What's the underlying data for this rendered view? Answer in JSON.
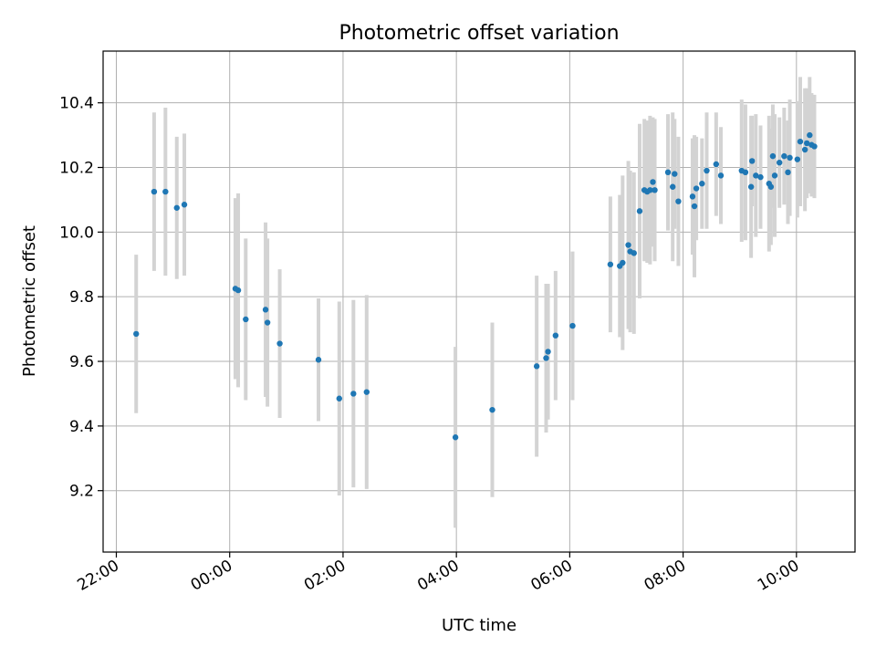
{
  "chart_data": {
    "type": "scatter",
    "title": "Photometric offset variation",
    "xlabel": "UTC time",
    "ylabel": "Photometric offset",
    "xlim": [
      "21:46",
      "11:02"
    ],
    "ylim": [
      9.01,
      10.56
    ],
    "x_ticks": [
      "22:00",
      "00:00",
      "02:00",
      "04:00",
      "06:00",
      "08:00",
      "10:00"
    ],
    "y_ticks": [
      9.2,
      9.4,
      9.6,
      9.8,
      10.0,
      10.2,
      10.4
    ],
    "y_tick_labels": [
      "9.2",
      "9.4",
      "9.6",
      "9.8",
      "10.0",
      "10.2",
      "10.4"
    ],
    "grid": true,
    "colors": {
      "point": "#1f77b4",
      "errorbar": "#d3d3d3",
      "grid": "#b0b0b0"
    },
    "series": [
      {
        "x": [
          "22:21",
          "22:40",
          "22:52",
          "23:04",
          "23:12",
          "00:06",
          "00:09",
          "00:17",
          "00:38",
          "00:40",
          "00:53",
          "01:34",
          "01:56",
          "02:11",
          "02:25",
          "03:59",
          "04:38",
          "05:25",
          "05:35",
          "05:37",
          "05:45",
          "06:03",
          "06:43",
          "06:53",
          "06:56",
          "07:02",
          "07:04",
          "07:08",
          "07:14",
          "07:19",
          "07:22",
          "07:25",
          "07:28",
          "07:30",
          "07:44",
          "07:49",
          "07:51",
          "07:55",
          "08:10",
          "08:12",
          "08:14",
          "08:20",
          "08:25",
          "08:35",
          "08:40",
          "09:02",
          "09:06",
          "09:12",
          "09:13",
          "09:17",
          "09:22",
          "09:31",
          "09:33",
          "09:35",
          "09:37",
          "09:42",
          "09:47",
          "09:51",
          "09:53",
          "10:01",
          "10:04",
          "10:09",
          "10:11",
          "10:14",
          "10:16",
          "10:19"
        ],
        "y": [
          9.685,
          10.125,
          10.125,
          10.075,
          10.085,
          9.825,
          9.82,
          9.73,
          9.76,
          9.72,
          9.655,
          9.605,
          9.485,
          9.5,
          9.505,
          9.365,
          9.45,
          9.585,
          9.61,
          9.63,
          9.68,
          9.71,
          9.9,
          9.895,
          9.905,
          9.96,
          9.94,
          9.935,
          10.065,
          10.13,
          10.125,
          10.13,
          10.155,
          10.13,
          10.185,
          10.14,
          10.18,
          10.095,
          10.11,
          10.08,
          10.135,
          10.15,
          10.19,
          10.21,
          10.175,
          10.19,
          10.185,
          10.14,
          10.22,
          10.175,
          10.17,
          10.15,
          10.14,
          10.235,
          10.175,
          10.215,
          10.235,
          10.185,
          10.23,
          10.225,
          10.28,
          10.255,
          10.275,
          10.3,
          10.27,
          10.265
        ],
        "err": [
          0.245,
          0.245,
          0.26,
          0.22,
          0.22,
          0.28,
          0.3,
          0.25,
          0.27,
          0.26,
          0.23,
          0.19,
          0.3,
          0.29,
          0.3,
          0.28,
          0.27,
          0.28,
          0.23,
          0.21,
          0.2,
          0.23,
          0.21,
          0.22,
          0.27,
          0.26,
          0.25,
          0.25,
          0.27,
          0.22,
          0.22,
          0.23,
          0.2,
          0.22,
          0.18,
          0.23,
          0.17,
          0.2,
          0.18,
          0.22,
          0.16,
          0.14,
          0.18,
          0.16,
          0.15,
          0.22,
          0.21,
          0.22,
          0.14,
          0.19,
          0.16,
          0.21,
          0.18,
          0.16,
          0.19,
          0.14,
          0.15,
          0.16,
          0.18,
          0.18,
          0.2,
          0.19,
          0.17,
          0.18,
          0.16,
          0.16
        ]
      }
    ]
  }
}
